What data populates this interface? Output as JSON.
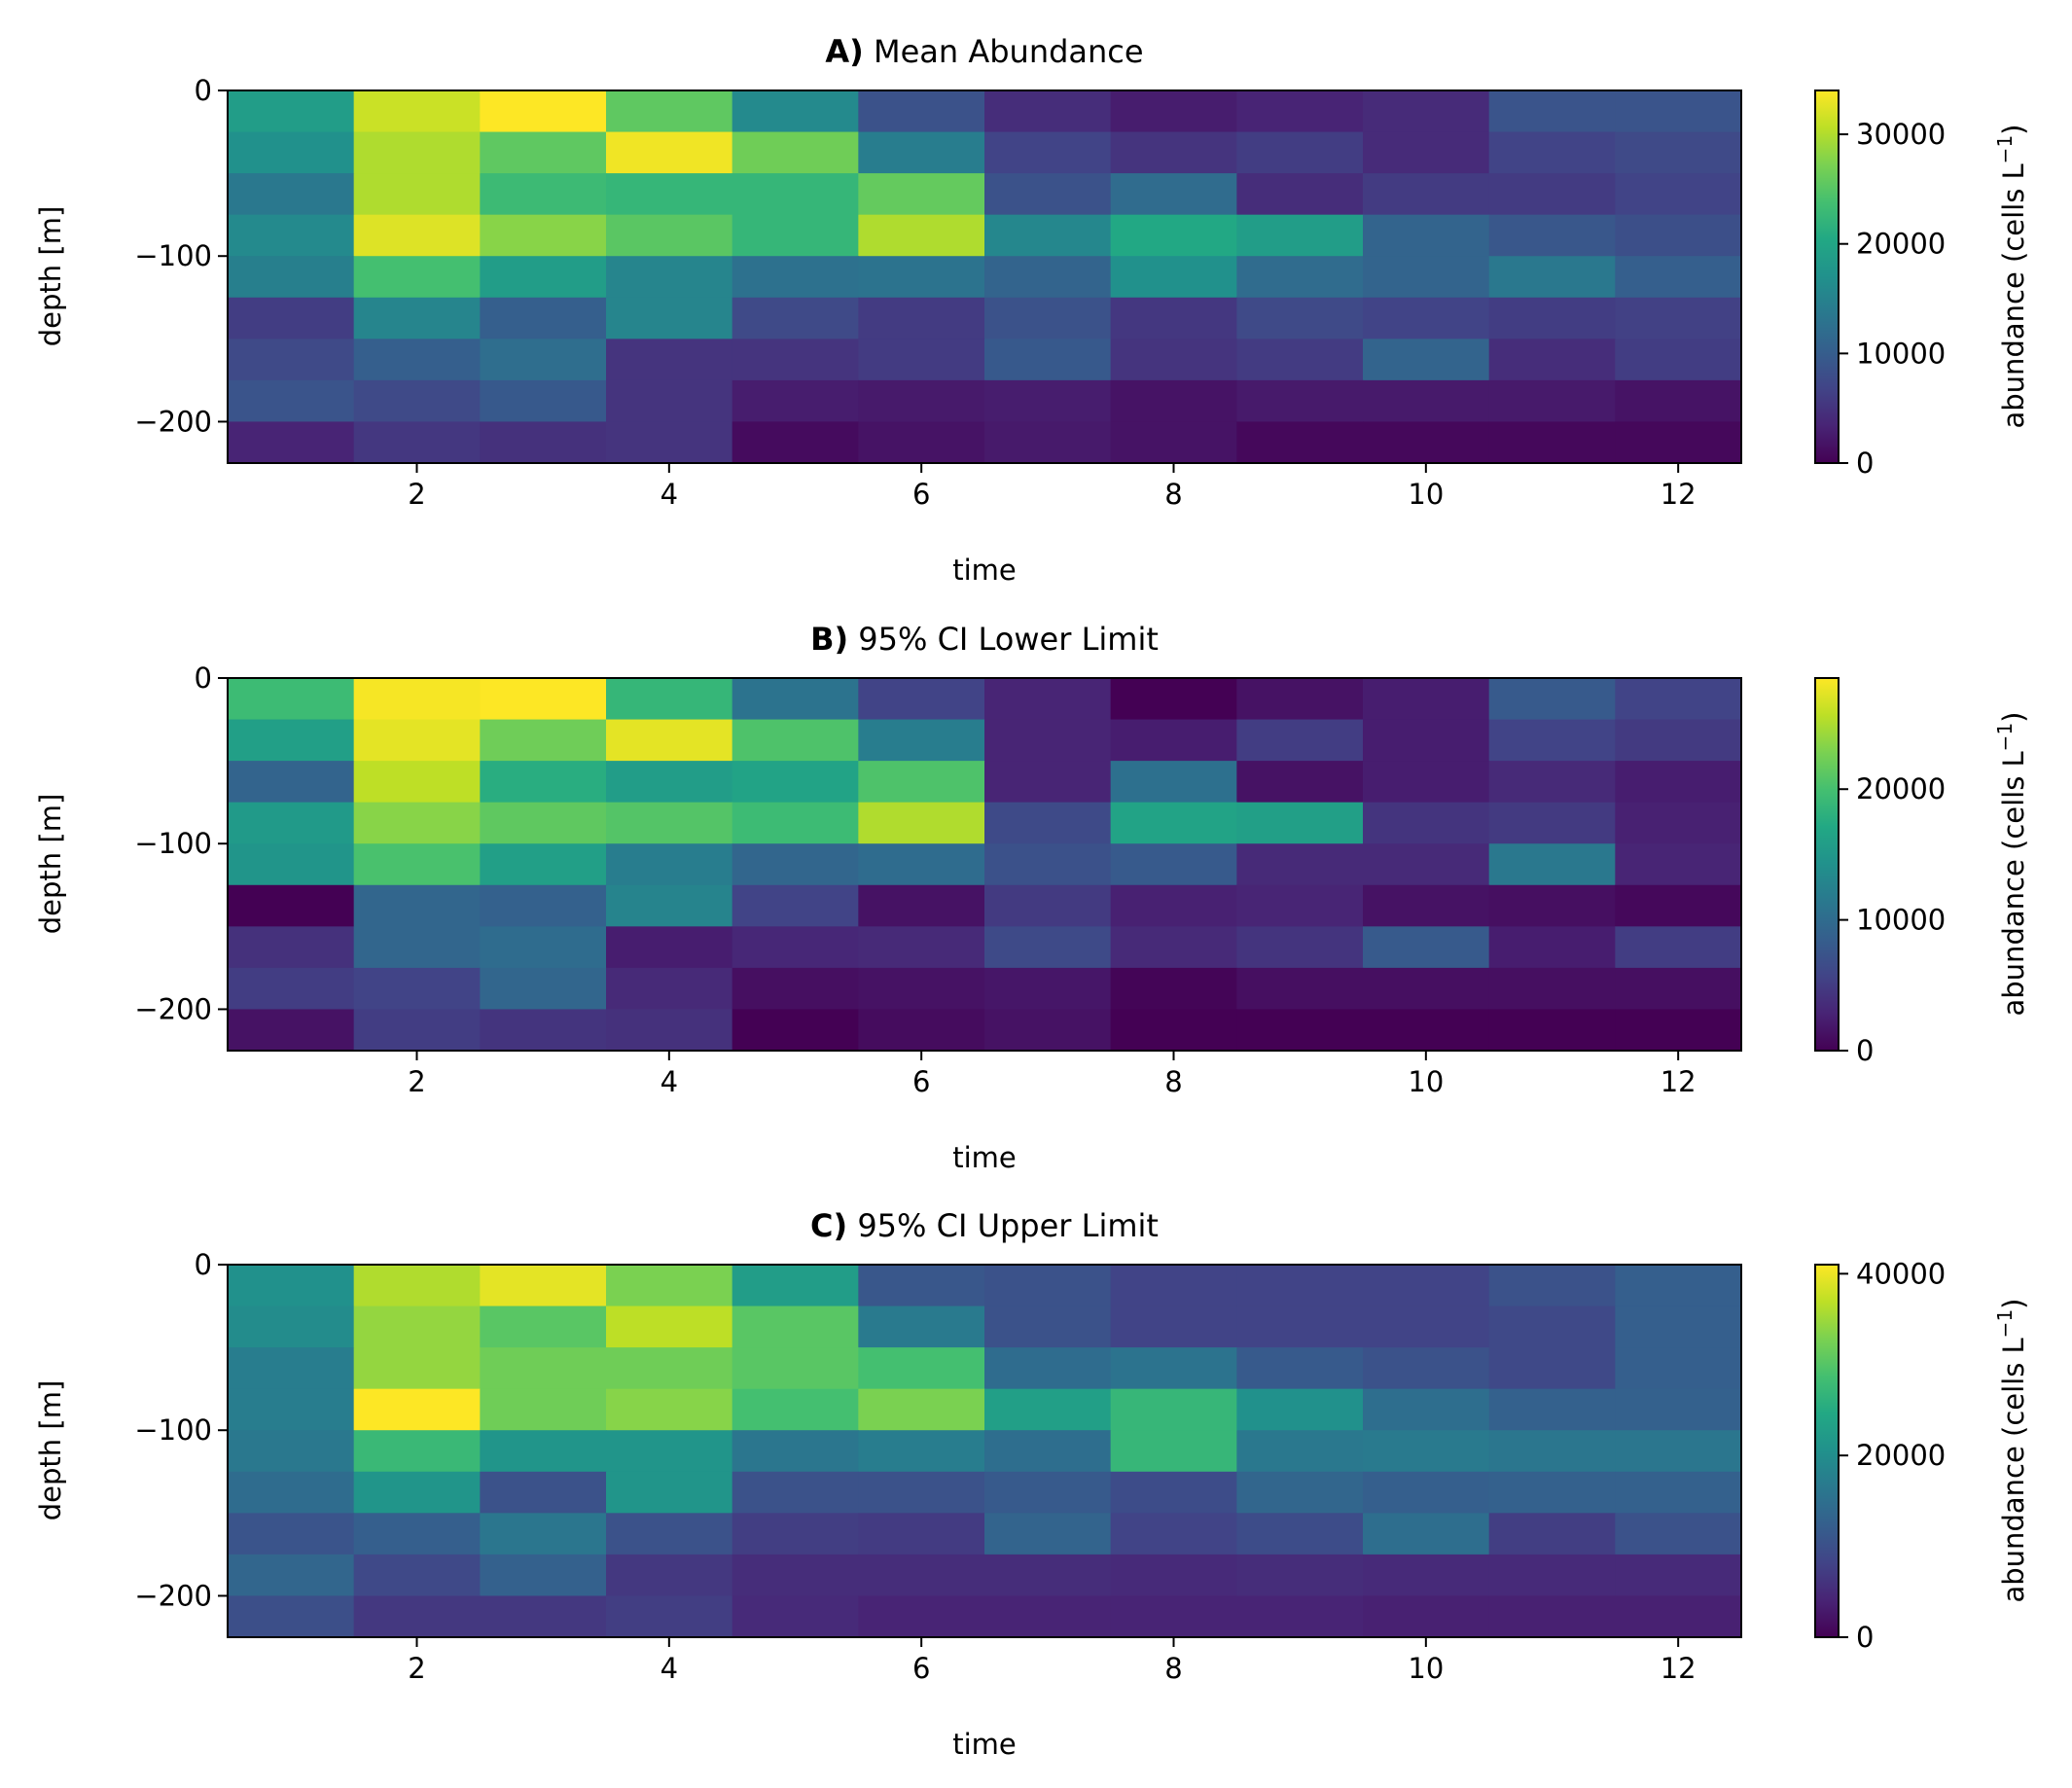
{
  "chart_data": [
    {
      "type": "heatmap",
      "panel_label": "A)",
      "title": "Mean Abundance",
      "xlabel": "time",
      "ylabel": "depth [m]",
      "colorbar_label": "abundance (cells L",
      "colorbar_label_sup": "−1",
      "colorbar_label_end": ")",
      "colormap": "viridis",
      "vmin": 0,
      "vmax": 34000,
      "colorbar_ticks": [
        0,
        10000,
        20000,
        30000
      ],
      "x": [
        1,
        2,
        3,
        4,
        5,
        6,
        7,
        8,
        9,
        10,
        11,
        12
      ],
      "xlim": [
        0.5,
        12.5
      ],
      "xticks": [
        2,
        4,
        6,
        8,
        10,
        12
      ],
      "depth_bins": [
        0,
        -25,
        -50,
        -75,
        -100,
        -125,
        -150,
        -175,
        -200
      ],
      "ylim": [
        -225,
        0
      ],
      "yticks": [
        0,
        -100,
        -200
      ],
      "ytick_labels": [
        "0",
        "−100",
        "−200"
      ],
      "values": [
        [
          18700,
          31300,
          34000,
          25500,
          16000,
          8500,
          4400,
          2700,
          3400,
          4100,
          8800,
          8800
        ],
        [
          17000,
          29900,
          25500,
          33300,
          26500,
          14300,
          6800,
          5100,
          6100,
          4100,
          6800,
          7500
        ],
        [
          13600,
          29900,
          23100,
          22400,
          22400,
          25800,
          8500,
          11900,
          4400,
          5800,
          5800,
          6800
        ],
        [
          16000,
          32300,
          27900,
          25200,
          22400,
          29900,
          15600,
          20400,
          18700,
          10900,
          9200,
          8200
        ],
        [
          14600,
          23800,
          18700,
          15300,
          12600,
          12900,
          10900,
          17000,
          11900,
          10900,
          13600,
          10200
        ],
        [
          6100,
          15300,
          10200,
          15300,
          7500,
          5800,
          8500,
          5400,
          7500,
          6800,
          6100,
          6500
        ],
        [
          7500,
          10200,
          12200,
          5100,
          5100,
          5800,
          9500,
          5100,
          5800,
          10900,
          4400,
          6100
        ],
        [
          8800,
          7500,
          9500,
          5100,
          2700,
          2400,
          2700,
          1700,
          2400,
          2400,
          2400,
          1700
        ],
        [
          3400,
          5400,
          4800,
          5100,
          1000,
          1700,
          2400,
          1700,
          700,
          700,
          700,
          700
        ]
      ]
    },
    {
      "type": "heatmap",
      "panel_label": "B)",
      "title": "95% CI Lower Limit",
      "xlabel": "time",
      "ylabel": "depth [m]",
      "colorbar_label": "abundance (cells L",
      "colorbar_label_sup": "−1",
      "colorbar_label_end": ")",
      "colormap": "viridis",
      "vmin": 0,
      "vmax": 28500,
      "colorbar_ticks": [
        0,
        10000,
        20000
      ],
      "x": [
        1,
        2,
        3,
        4,
        5,
        6,
        7,
        8,
        9,
        10,
        11,
        12
      ],
      "xlim": [
        0.5,
        12.5
      ],
      "xticks": [
        2,
        4,
        6,
        8,
        10,
        12
      ],
      "depth_bins": [
        0,
        -25,
        -50,
        -75,
        -100,
        -125,
        -150,
        -175,
        -200
      ],
      "ylim": [
        -225,
        0
      ],
      "yticks": [
        0,
        -100,
        -200
      ],
      "ytick_labels": [
        "0",
        "−100",
        "−200"
      ],
      "values": [
        [
          19400,
          28200,
          28500,
          18800,
          10800,
          5700,
          2900,
          0,
          1400,
          2300,
          8000,
          5700
        ],
        [
          16000,
          27400,
          22200,
          27400,
          20500,
          12000,
          2900,
          2300,
          5100,
          2300,
          5700,
          4800
        ],
        [
          9100,
          25700,
          17700,
          15700,
          16500,
          20500,
          2900,
          10500,
          1400,
          2300,
          3400,
          2300
        ],
        [
          15400,
          23400,
          21400,
          20800,
          19400,
          25100,
          6300,
          16500,
          16000,
          4300,
          4800,
          2600
        ],
        [
          14800,
          20200,
          16000,
          12000,
          9400,
          10000,
          7100,
          8000,
          3400,
          3400,
          11400,
          2900
        ],
        [
          0,
          9400,
          8800,
          12800,
          5700,
          1400,
          4800,
          2600,
          2900,
          1400,
          1100,
          600
        ],
        [
          4000,
          9400,
          10000,
          2300,
          3100,
          3400,
          6300,
          3400,
          4300,
          8000,
          2300,
          5100
        ],
        [
          5100,
          5700,
          9400,
          3400,
          1100,
          1400,
          1700,
          300,
          1100,
          1100,
          1100,
          1100
        ],
        [
          1400,
          5100,
          4300,
          4000,
          0,
          900,
          1400,
          0,
          0,
          0,
          0,
          0
        ]
      ]
    },
    {
      "type": "heatmap",
      "panel_label": "C)",
      "title": "95% CI Upper Limit",
      "xlabel": "time",
      "ylabel": "depth [m]",
      "colorbar_label": "abundance (cells L",
      "colorbar_label_sup": "−1",
      "colorbar_label_end": ")",
      "colormap": "viridis",
      "vmin": 0,
      "vmax": 41000,
      "colorbar_ticks": [
        0,
        20000,
        40000
      ],
      "x": [
        1,
        2,
        3,
        4,
        5,
        6,
        7,
        8,
        9,
        10,
        11,
        12
      ],
      "xlim": [
        0.5,
        12.5
      ],
      "xticks": [
        2,
        4,
        6,
        8,
        10,
        12
      ],
      "depth_bins": [
        0,
        -25,
        -50,
        -75,
        -100,
        -125,
        -150,
        -175,
        -200
      ],
      "ylim": [
        -225,
        0
      ],
      "yticks": [
        0,
        -100,
        -200
      ],
      "ytick_labels": [
        "0",
        "−100",
        "−200"
      ],
      "values": [
        [
          20500,
          36100,
          39400,
          32800,
          22600,
          11100,
          10300,
          8200,
          8200,
          8200,
          10300,
          12300
        ],
        [
          19700,
          34400,
          30300,
          36900,
          30300,
          16800,
          10300,
          8200,
          8200,
          8200,
          9000,
          12300
        ],
        [
          17200,
          34400,
          32000,
          32000,
          30300,
          28700,
          14400,
          15600,
          11500,
          10300,
          9000,
          12300
        ],
        [
          17200,
          41000,
          32000,
          33600,
          28700,
          32800,
          23000,
          27100,
          20500,
          14800,
          12700,
          12700
        ],
        [
          16400,
          27500,
          21300,
          21300,
          16000,
          17200,
          14800,
          27100,
          16400,
          16800,
          16000,
          16000
        ],
        [
          14400,
          21300,
          10300,
          21300,
          10300,
          10300,
          11500,
          9400,
          13500,
          12300,
          12700,
          12700
        ],
        [
          10700,
          12300,
          16000,
          10300,
          7400,
          7000,
          13100,
          8200,
          9400,
          14800,
          7400,
          10300
        ],
        [
          13500,
          9000,
          12700,
          6600,
          5300,
          5300,
          5300,
          4900,
          5300,
          4900,
          4900,
          4900
        ],
        [
          9800,
          6600,
          6600,
          7400,
          4900,
          4100,
          4100,
          4100,
          4100,
          3700,
          3700,
          3700
        ]
      ]
    }
  ]
}
